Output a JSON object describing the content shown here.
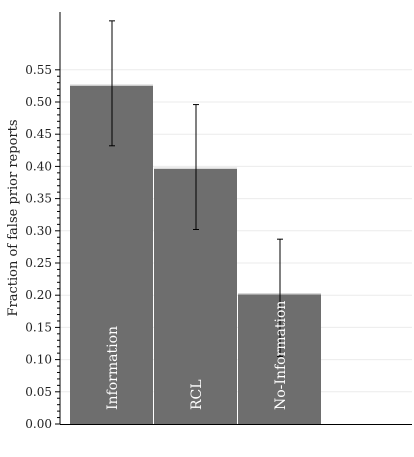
{
  "chart_data": {
    "type": "bar",
    "title": "",
    "xlabel": "",
    "ylabel": "Fraction of false prior reports",
    "ylim": [
      0,
      0.6
    ],
    "yticks": [
      "0.00",
      "0.05",
      "0.10",
      "0.15",
      "0.20",
      "0.25",
      "0.30",
      "0.35",
      "0.40",
      "0.45",
      "0.50",
      "0.55"
    ],
    "categories": [
      "Information",
      "RCL",
      "No-Information"
    ],
    "values": [
      0.527,
      0.398,
      0.203
    ],
    "error_low": [
      0.432,
      0.302,
      0.105
    ],
    "error_high": [
      0.626,
      0.496,
      0.287
    ],
    "grid": true,
    "colors": {
      "bar": "#6e6e6e",
      "bar_edge": "#d9d9d9",
      "grid": "#ebebeb",
      "axis": "#000000",
      "error": "#000000",
      "label": "#ffffff"
    }
  }
}
